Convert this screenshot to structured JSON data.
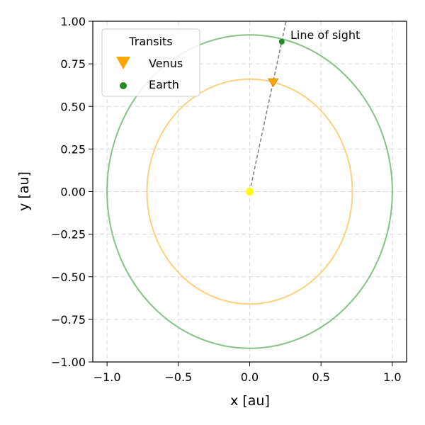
{
  "chart_data": {
    "type": "scatter",
    "xlabel": "x [au]",
    "ylabel": "y [au]",
    "xlim": [
      -1.1,
      1.1
    ],
    "ylim": [
      -1.0,
      1.0
    ],
    "x_ticks": [
      -1.0,
      -0.5,
      0.0,
      0.5,
      1.0
    ],
    "x_tick_labels": [
      "−1.0",
      "−0.5",
      "0.0",
      "0.5",
      "1.0"
    ],
    "y_ticks": [
      -1.0,
      -0.75,
      -0.5,
      -0.25,
      0.0,
      0.25,
      0.5,
      0.75,
      1.0
    ],
    "y_tick_labels": [
      "−1.00",
      "−0.75",
      "−0.50",
      "−0.25",
      "0.00",
      "0.25",
      "0.50",
      "0.75",
      "1.00"
    ],
    "grid": true,
    "legend": {
      "title": "Transits",
      "placement": "top-left"
    },
    "orbits": [
      {
        "name": "Venus",
        "color": "#ffc04d",
        "center": [
          0.0,
          0.0
        ],
        "rx": 0.72,
        "ry": 0.66
      },
      {
        "name": "Earth",
        "color": "#5fae5f",
        "center": [
          0.0,
          0.0
        ],
        "rx": 1.0,
        "ry": 0.92
      }
    ],
    "series": [
      {
        "name": "Venus",
        "marker": "triangle-down",
        "color": "#ffa500",
        "points": [
          [
            0.165,
            0.645
          ]
        ]
      },
      {
        "name": "Earth",
        "marker": "circle",
        "color": "#228b22",
        "points": [
          [
            0.225,
            0.88
          ]
        ]
      }
    ],
    "sun": {
      "x": 0.0,
      "y": 0.0,
      "color": "#ffff00"
    },
    "line_of_sight": {
      "label": "Line of sight",
      "from": [
        0.0,
        0.0
      ],
      "to": [
        0.255,
        1.0
      ],
      "color": "#808080"
    }
  }
}
